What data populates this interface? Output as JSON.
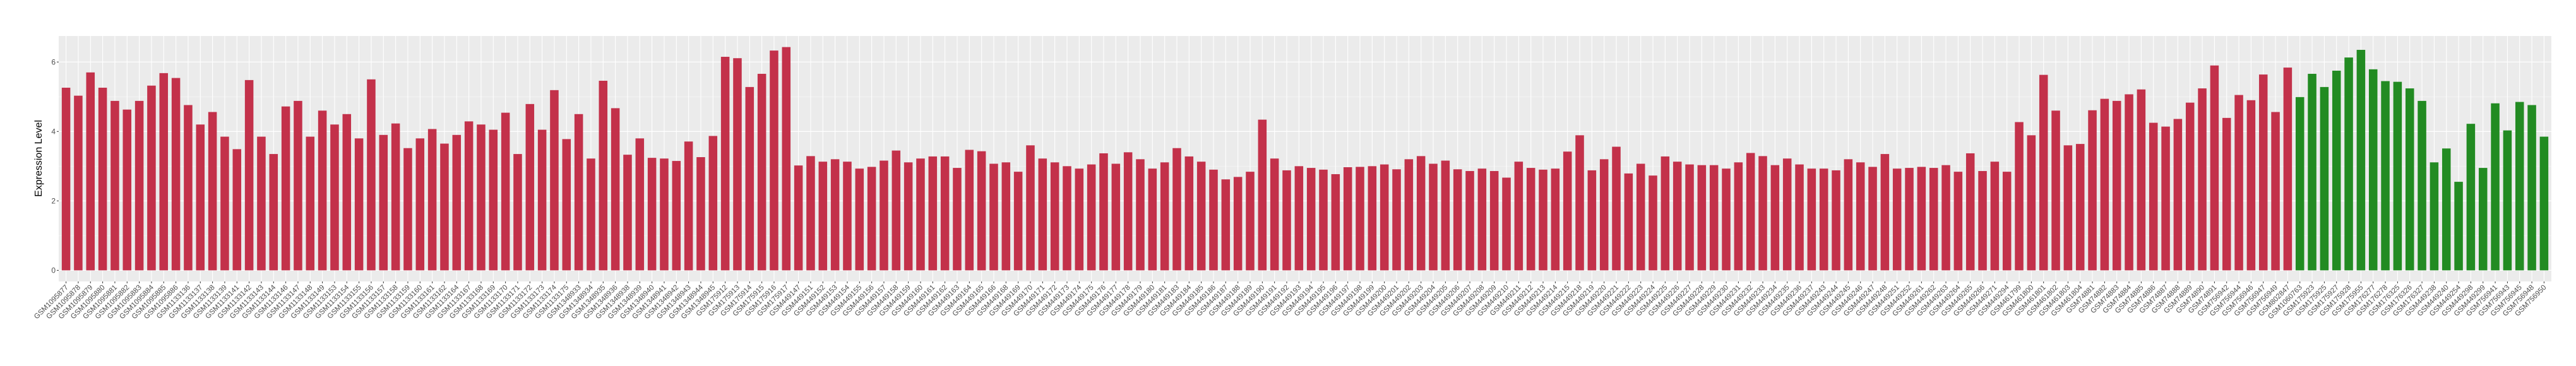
{
  "chart_data": {
    "type": "bar",
    "title": "",
    "xlabel": "",
    "ylabel": "Expression Level",
    "ylim": [
      -0.32,
      6.75
    ],
    "yticks": [
      "0",
      "2",
      "4",
      "6"
    ],
    "grid": true,
    "panel_background": "#EBEBEB",
    "groups": [
      {
        "color": "#C3314A",
        "categories": [
          "GSM1095877",
          "GSM1095878",
          "GSM1095879",
          "GSM1095880",
          "GSM1095881",
          "GSM1095882",
          "GSM1095883",
          "GSM1095884",
          "GSM1095885",
          "GSM1095886",
          "GSM1133136",
          "GSM1133137",
          "GSM1133138",
          "GSM1133139",
          "GSM1133141",
          "GSM1133142",
          "GSM1133143",
          "GSM1133144",
          "GSM1133146",
          "GSM1133147",
          "GSM1133148",
          "GSM1133149",
          "GSM1133153",
          "GSM1133154",
          "GSM1133155",
          "GSM1133156",
          "GSM1133157",
          "GSM1133158",
          "GSM1133159",
          "GSM1133160",
          "GSM1133161",
          "GSM1133162",
          "GSM1133164",
          "GSM1133167",
          "GSM1133168",
          "GSM1133169",
          "GSM1133170",
          "GSM1133171",
          "GSM1133172",
          "GSM1133173",
          "GSM1133174",
          "GSM1133175",
          "GSM1348933",
          "GSM1348934",
          "GSM1348935",
          "GSM1348936",
          "GSM1348938",
          "GSM1348939",
          "GSM1348940",
          "GSM1348941",
          "GSM1348942",
          "GSM1348943",
          "GSM1348944",
          "GSM1348945",
          "GSM175912",
          "GSM175913",
          "GSM175914",
          "GSM175915",
          "GSM175916",
          "GSM175917",
          "GSM449147",
          "GSM449151",
          "GSM449152",
          "GSM449153",
          "GSM449154",
          "GSM449155",
          "GSM449156",
          "GSM449157",
          "GSM449158",
          "GSM449159",
          "GSM449160",
          "GSM449161",
          "GSM449162",
          "GSM449163",
          "GSM449164",
          "GSM449165",
          "GSM449166",
          "GSM449168",
          "GSM449169",
          "GSM449170",
          "GSM449171",
          "GSM449172",
          "GSM449173",
          "GSM449174",
          "GSM449175",
          "GSM449176",
          "GSM449177",
          "GSM449178",
          "GSM449179",
          "GSM449180",
          "GSM449181",
          "GSM449183",
          "GSM449184",
          "GSM449185",
          "GSM449186",
          "GSM449187",
          "GSM449188",
          "GSM449189",
          "GSM449190",
          "GSM449191",
          "GSM449192",
          "GSM449193",
          "GSM449194",
          "GSM449195",
          "GSM449196",
          "GSM449197",
          "GSM449198",
          "GSM449199",
          "GSM449200",
          "GSM449201",
          "GSM449202",
          "GSM449203",
          "GSM449204",
          "GSM449205",
          "GSM449206",
          "GSM449207",
          "GSM449208",
          "GSM449209",
          "GSM449210",
          "GSM449211",
          "GSM449212",
          "GSM449213",
          "GSM449214",
          "GSM449215",
          "GSM449218",
          "GSM449219",
          "GSM449220",
          "GSM449221",
          "GSM449222",
          "GSM449223",
          "GSM449224",
          "GSM449225",
          "GSM449226",
          "GSM449227",
          "GSM449228",
          "GSM449229",
          "GSM449230",
          "GSM449231",
          "GSM449232",
          "GSM449233",
          "GSM449234",
          "GSM449235",
          "GSM449236",
          "GSM449237",
          "GSM449243",
          "GSM449244",
          "GSM449245",
          "GSM449246",
          "GSM449247",
          "GSM449248",
          "GSM449251",
          "GSM449252",
          "GSM449261",
          "GSM449262",
          "GSM449263",
          "GSM449264",
          "GSM449265",
          "GSM449266",
          "GSM449271",
          "GSM449294",
          "GSM461799",
          "GSM461800",
          "GSM461801",
          "GSM461802",
          "GSM461803",
          "GSM461804",
          "GSM74881",
          "GSM74882",
          "GSM74883",
          "GSM74884",
          "GSM74885",
          "GSM74886",
          "GSM74887",
          "GSM74888",
          "GSM74889",
          "GSM74890",
          "GSM74891",
          "GSM756942",
          "GSM756944",
          "GSM756946",
          "GSM756947",
          "GSM756949",
          "GSM802847"
        ],
        "values": [
          5.26,
          5.03,
          5.7,
          5.26,
          4.88,
          4.63,
          4.88,
          5.32,
          5.68,
          5.54,
          4.76,
          4.2,
          4.56,
          3.85,
          3.49,
          5.48,
          3.85,
          3.35,
          4.72,
          4.88,
          3.85,
          4.6,
          4.2,
          4.5,
          3.8,
          5.5,
          3.9,
          4.23,
          3.52,
          3.8,
          4.07,
          3.65,
          3.9,
          4.29,
          4.2,
          4.05,
          4.54,
          3.35,
          4.79,
          4.05,
          5.19,
          3.78,
          4.5,
          3.22,
          5.46,
          4.67,
          3.33,
          3.8,
          3.24,
          3.22,
          3.15,
          3.71,
          3.26,
          3.87,
          6.15,
          6.11,
          5.28,
          5.66,
          6.33,
          6.43,
          3.02,
          3.29,
          3.13,
          3.2,
          3.13,
          2.93,
          2.98,
          3.16,
          3.45,
          3.11,
          3.22,
          3.28,
          3.28,
          2.95,
          3.47,
          3.43,
          3.07,
          3.11,
          2.84,
          3.6,
          3.22,
          3.11,
          3.0,
          2.93,
          3.05,
          3.37,
          3.07,
          3.4,
          3.2,
          2.93,
          3.11,
          3.52,
          3.28,
          3.13,
          2.9,
          2.62,
          2.69,
          2.84,
          4.34,
          3.22,
          2.88,
          3.0,
          2.95,
          2.9,
          2.77,
          2.97,
          2.98,
          3.0,
          3.05,
          2.91,
          3.2,
          3.29,
          3.07,
          3.16,
          2.91,
          2.86,
          2.93,
          2.86,
          2.67,
          3.13,
          2.95,
          2.9,
          2.93,
          3.42,
          3.89,
          2.88,
          3.2,
          3.56,
          2.79,
          3.07,
          2.73,
          3.28,
          3.13,
          3.05,
          3.03,
          3.03,
          2.93,
          3.11,
          3.38,
          3.29,
          3.03,
          3.22,
          3.05,
          2.93,
          2.93,
          2.88,
          3.2,
          3.11,
          2.98,
          3.35,
          2.93,
          2.95,
          2.98,
          2.95,
          3.03,
          2.84,
          3.37,
          2.86,
          3.13,
          2.84,
          4.27,
          3.89,
          5.63,
          4.6,
          3.6,
          3.64,
          4.61,
          4.94,
          4.88,
          5.07,
          5.21,
          4.25,
          4.14,
          4.36,
          4.83,
          5.24,
          5.9,
          4.39,
          5.05,
          4.9,
          5.64,
          4.56,
          5.84
        ]
      },
      {
        "color": "#228B22",
        "categories": [
          "GSM1060763",
          "GSM175923",
          "GSM175925",
          "GSM175927",
          "GSM175928",
          "GSM175955",
          "GSM176277",
          "GSM176278",
          "GSM176325",
          "GSM176326",
          "GSM176327",
          "GSM449238",
          "GSM449240",
          "GSM449254",
          "GSM449298",
          "GSM449299",
          "GSM756941",
          "GSM756943",
          "GSM756945",
          "GSM756948",
          "GSM756950"
        ],
        "values": [
          4.99,
          5.66,
          5.28,
          5.75,
          6.13,
          6.35,
          5.79,
          5.45,
          5.43,
          5.24,
          4.88,
          3.11,
          3.51,
          2.55,
          4.22,
          2.95,
          4.81,
          4.03,
          4.85,
          4.76,
          3.85
        ]
      }
    ]
  }
}
